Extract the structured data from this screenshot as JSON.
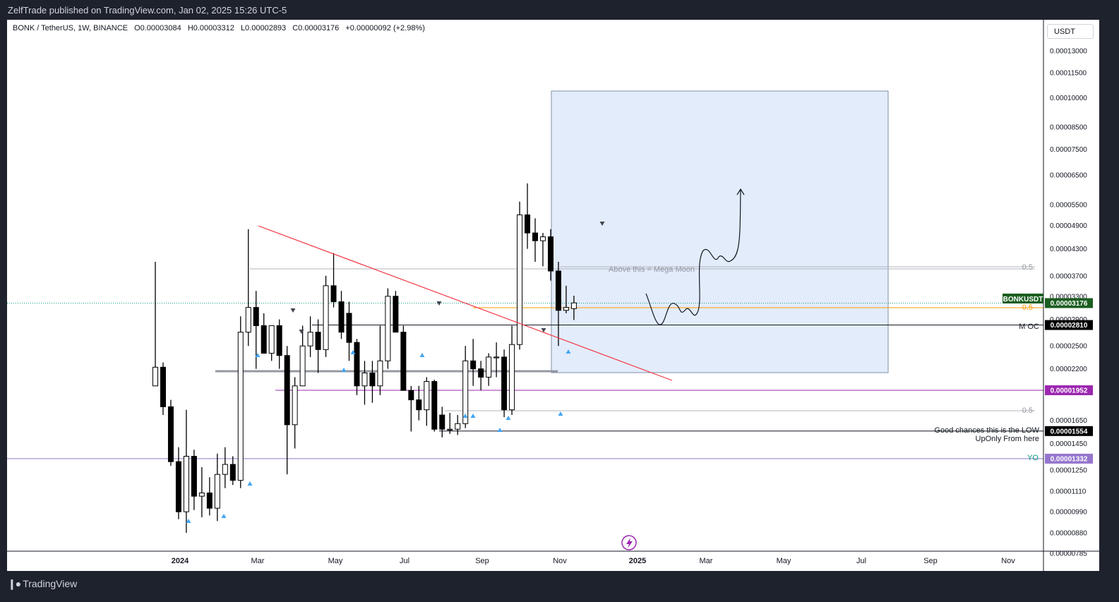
{
  "header": {
    "publish_info": "ZelfTrade published on TradingView.com, Jan 02, 2025 15:26 UTC-5"
  },
  "legend": {
    "symbol": "BONK / TetherUS, 1W, BINANCE",
    "open": "O0.00003084",
    "high": "H0.00003312",
    "low": "L0.00002893",
    "close": "C0.00003176",
    "change": "+0.00000092 (+2.98%)"
  },
  "currency": "USDT",
  "footer": {
    "brand": "TradingView"
  },
  "colors": {
    "bull_body": "#ffffff",
    "bear_body": "#000000",
    "trendline": "#f23645",
    "orange_line": "#ff9800",
    "purple_line": "#9c27b0",
    "violet_line": "#9575cd",
    "green_dotted": "#089981",
    "projection_box": "#e3ecfb",
    "signal_arrow": "#42a5f5",
    "tag_green": "#1b5e20",
    "tag_black": "#000000"
  },
  "chart_data": {
    "type": "candlestick",
    "interval": "1W",
    "y_scale": "log",
    "ylim": [
      7.4e-06,
      1.35e-05
    ],
    "y_ticks": [
      "0.00013000",
      "0.00011500",
      "0.00010000",
      "0.00008500",
      "0.00007500",
      "0.00006500",
      "0.00005500",
      "0.00004900",
      "0.00004300",
      "0.00003700",
      "0.00003300",
      "0.00002900",
      "0.00002500",
      "0.00002200",
      "0.00001950",
      "0.00001650",
      "0.00001450",
      "0.00001250",
      "0.00001110",
      "0.00000990",
      "0.00000880",
      "0.00000785"
    ],
    "x_labels": [
      "2024",
      "Mar",
      "May",
      "Jul",
      "Sep",
      "Nov",
      "2025",
      "Mar",
      "May",
      "Jul",
      "Sep",
      "Nov"
    ],
    "candles": [
      {
        "d": "2023-12-11",
        "o": 2e-05,
        "h": 4e-05,
        "l": 2e-05,
        "c": 2.22e-05
      },
      {
        "d": "2023-12-18",
        "o": 2.22e-05,
        "h": 2.28e-05,
        "l": 1.7e-05,
        "c": 1.78e-05
      },
      {
        "d": "2023-12-25",
        "o": 1.78e-05,
        "h": 1.85e-05,
        "l": 1.28e-05,
        "c": 1.31e-05
      },
      {
        "d": "2024-01-01",
        "o": 1.31e-05,
        "h": 1.42e-05,
        "l": 9.5e-06,
        "c": 9.9e-06
      },
      {
        "d": "2024-01-08",
        "o": 9.9e-06,
        "h": 1.75e-05,
        "l": 8.8e-06,
        "c": 1.35e-05
      },
      {
        "d": "2024-01-15",
        "o": 1.35e-05,
        "h": 1.4e-05,
        "l": 1e-05,
        "c": 1.08e-05
      },
      {
        "d": "2024-01-22",
        "o": 1.08e-05,
        "h": 1.27e-05,
        "l": 9.6e-06,
        "c": 1.1e-05
      },
      {
        "d": "2024-01-29",
        "o": 1.1e-05,
        "h": 1.2e-05,
        "l": 9.7e-06,
        "c": 1.01e-05
      },
      {
        "d": "2024-02-05",
        "o": 1.01e-05,
        "h": 1.37e-05,
        "l": 9.4e-06,
        "c": 1.22e-05
      },
      {
        "d": "2024-02-12",
        "o": 1.22e-05,
        "h": 1.42e-05,
        "l": 1.13e-05,
        "c": 1.29e-05
      },
      {
        "d": "2024-02-19",
        "o": 1.29e-05,
        "h": 1.35e-05,
        "l": 1.15e-05,
        "c": 1.18e-05
      },
      {
        "d": "2024-02-26",
        "o": 1.18e-05,
        "h": 2.95e-05,
        "l": 1.13e-05,
        "c": 2.7e-05
      },
      {
        "d": "2024-03-04",
        "o": 2.7e-05,
        "h": 4.8e-05,
        "l": 2.5e-05,
        "c": 3.1e-05
      },
      {
        "d": "2024-03-11",
        "o": 3.1e-05,
        "h": 3.4e-05,
        "l": 2.2e-05,
        "c": 2.8e-05
      },
      {
        "d": "2024-03-18",
        "o": 2.8e-05,
        "h": 3e-05,
        "l": 2.4e-05,
        "c": 2.4e-05
      },
      {
        "d": "2024-03-25",
        "o": 2.4e-05,
        "h": 2.8e-05,
        "l": 2.3e-05,
        "c": 2.8e-05
      },
      {
        "d": "2024-04-01",
        "o": 2.8e-05,
        "h": 2.9e-05,
        "l": 2.2e-05,
        "c": 2.37e-05
      },
      {
        "d": "2024-04-08",
        "o": 2.37e-05,
        "h": 2.5e-05,
        "l": 1.22e-05,
        "c": 1.61e-05
      },
      {
        "d": "2024-04-15",
        "o": 1.61e-05,
        "h": 2.1e-05,
        "l": 1.41e-05,
        "c": 2e-05
      },
      {
        "d": "2024-04-22",
        "o": 2e-05,
        "h": 2.8e-05,
        "l": 2e-05,
        "c": 2.5e-05
      },
      {
        "d": "2024-04-29",
        "o": 2.5e-05,
        "h": 2.95e-05,
        "l": 2.35e-05,
        "c": 2.7e-05
      },
      {
        "d": "2024-05-06",
        "o": 2.7e-05,
        "h": 2.9e-05,
        "l": 2.15e-05,
        "c": 2.45e-05
      },
      {
        "d": "2024-05-13",
        "o": 2.45e-05,
        "h": 3.7e-05,
        "l": 2.35e-05,
        "c": 3.5e-05
      },
      {
        "d": "2024-05-20",
        "o": 3.5e-05,
        "h": 4.2e-05,
        "l": 3.1e-05,
        "c": 3.2e-05
      },
      {
        "d": "2024-05-27",
        "o": 3.2e-05,
        "h": 3.4e-05,
        "l": 2.6e-05,
        "c": 2.7e-05
      },
      {
        "d": "2024-06-03",
        "o": 3e-05,
        "h": 3.2e-05,
        "l": 2.3e-05,
        "c": 2.55e-05
      },
      {
        "d": "2024-06-10",
        "o": 2.55e-05,
        "h": 2.6e-05,
        "l": 1.9e-05,
        "c": 2e-05
      },
      {
        "d": "2024-06-17",
        "o": 2e-05,
        "h": 2.3e-05,
        "l": 1.8e-05,
        "c": 2.15e-05
      },
      {
        "d": "2024-06-24",
        "o": 2.15e-05,
        "h": 2.3e-05,
        "l": 1.82e-05,
        "c": 2e-05
      },
      {
        "d": "2024-07-01",
        "o": 2e-05,
        "h": 2.8e-05,
        "l": 1.9e-05,
        "c": 2.3e-05
      },
      {
        "d": "2024-07-08",
        "o": 2.3e-05,
        "h": 3.45e-05,
        "l": 2.2e-05,
        "c": 3.3e-05
      },
      {
        "d": "2024-07-15",
        "o": 3.3e-05,
        "h": 3.4e-05,
        "l": 2.7e-05,
        "c": 2.7e-05
      },
      {
        "d": "2024-07-22",
        "o": 2.7e-05,
        "h": 2.8e-05,
        "l": 1.95e-05,
        "c": 1.95e-05
      },
      {
        "d": "2024-07-29",
        "o": 1.95e-05,
        "h": 2e-05,
        "l": 1.55e-05,
        "c": 1.85e-05
      },
      {
        "d": "2024-08-05",
        "o": 1.85e-05,
        "h": 2e-05,
        "l": 1.65e-05,
        "c": 1.75e-05
      },
      {
        "d": "2024-08-12",
        "o": 1.75e-05,
        "h": 2.1e-05,
        "l": 1.6e-05,
        "c": 2.05e-05
      },
      {
        "d": "2024-08-19",
        "o": 2.05e-05,
        "h": 2.07e-05,
        "l": 1.55e-05,
        "c": 1.57e-05
      },
      {
        "d": "2024-08-26",
        "o": 1.7e-05,
        "h": 1.78e-05,
        "l": 1.5e-05,
        "c": 1.57e-05
      },
      {
        "d": "2024-09-02",
        "o": 1.57e-05,
        "h": 1.72e-05,
        "l": 1.53e-05,
        "c": 1.57e-05
      },
      {
        "d": "2024-09-09",
        "o": 1.57e-05,
        "h": 1.7e-05,
        "l": 1.52e-05,
        "c": 1.62e-05
      },
      {
        "d": "2024-09-16",
        "o": 1.62e-05,
        "h": 2.5e-05,
        "l": 1.58e-05,
        "c": 2.3e-05
      },
      {
        "d": "2024-09-23",
        "o": 2.3e-05,
        "h": 2.6e-05,
        "l": 2e-05,
        "c": 2.2e-05
      },
      {
        "d": "2024-09-30",
        "o": 2.2e-05,
        "h": 2.3e-05,
        "l": 1.95e-05,
        "c": 2.1e-05
      },
      {
        "d": "2024-10-07",
        "o": 2.1e-05,
        "h": 2.4e-05,
        "l": 2e-05,
        "c": 2.35e-05
      },
      {
        "d": "2024-10-14",
        "o": 2.35e-05,
        "h": 2.55e-05,
        "l": 2.1e-05,
        "c": 2.35e-05
      },
      {
        "d": "2024-10-21",
        "o": 2.35e-05,
        "h": 2.45e-05,
        "l": 1.68e-05,
        "c": 1.75e-05
      },
      {
        "d": "2024-10-28",
        "o": 1.75e-05,
        "h": 2.8e-05,
        "l": 1.7e-05,
        "c": 2.52e-05
      },
      {
        "d": "2024-11-04",
        "o": 2.52e-05,
        "h": 5.6e-05,
        "l": 2.45e-05,
        "c": 5.2e-05
      },
      {
        "d": "2024-11-11",
        "o": 5.2e-05,
        "h": 6.2e-05,
        "l": 4.3e-05,
        "c": 4.7e-05
      },
      {
        "d": "2024-11-18",
        "o": 4.7e-05,
        "h": 5.1e-05,
        "l": 4e-05,
        "c": 4.5e-05
      },
      {
        "d": "2024-11-25",
        "o": 4.5e-05,
        "h": 4.7e-05,
        "l": 3.9e-05,
        "c": 4.6e-05
      },
      {
        "d": "2024-12-02",
        "o": 4.6e-05,
        "h": 4.8e-05,
        "l": 3.6e-05,
        "c": 3.8e-05
      },
      {
        "d": "2024-12-09",
        "o": 3.8e-05,
        "h": 4e-05,
        "l": 2.5e-05,
        "c": 3.05e-05
      },
      {
        "d": "2024-12-16",
        "o": 3.05e-05,
        "h": 3.5e-05,
        "l": 3e-05,
        "c": 3.1e-05
      },
      {
        "d": "2024-12-23",
        "o": 3.08e-05,
        "h": 3.31e-05,
        "l": 2.89e-05,
        "c": 3.18e-05
      }
    ],
    "horizontal_levels": [
      {
        "name": "BONKUSDT",
        "value": 3.176e-05,
        "style": "dotted"
      },
      {
        "value": 2.81e-05,
        "label": "M OC"
      },
      {
        "value": 1.952e-05
      },
      {
        "value": 1.554e-05,
        "label": "Good chances this is the LOW\nUpOnly From here"
      },
      {
        "value": 1.332e-05,
        "label": "YO"
      }
    ],
    "fib_labels": [
      "0.5",
      "0.5",
      "0.5"
    ],
    "annotations": [
      "Above this = Mega Moon"
    ],
    "price_tags": [
      "BONKUSDT",
      "0.00003176",
      "0.00002810",
      "0.00001952",
      "0.00001554",
      "0.00001332"
    ]
  }
}
